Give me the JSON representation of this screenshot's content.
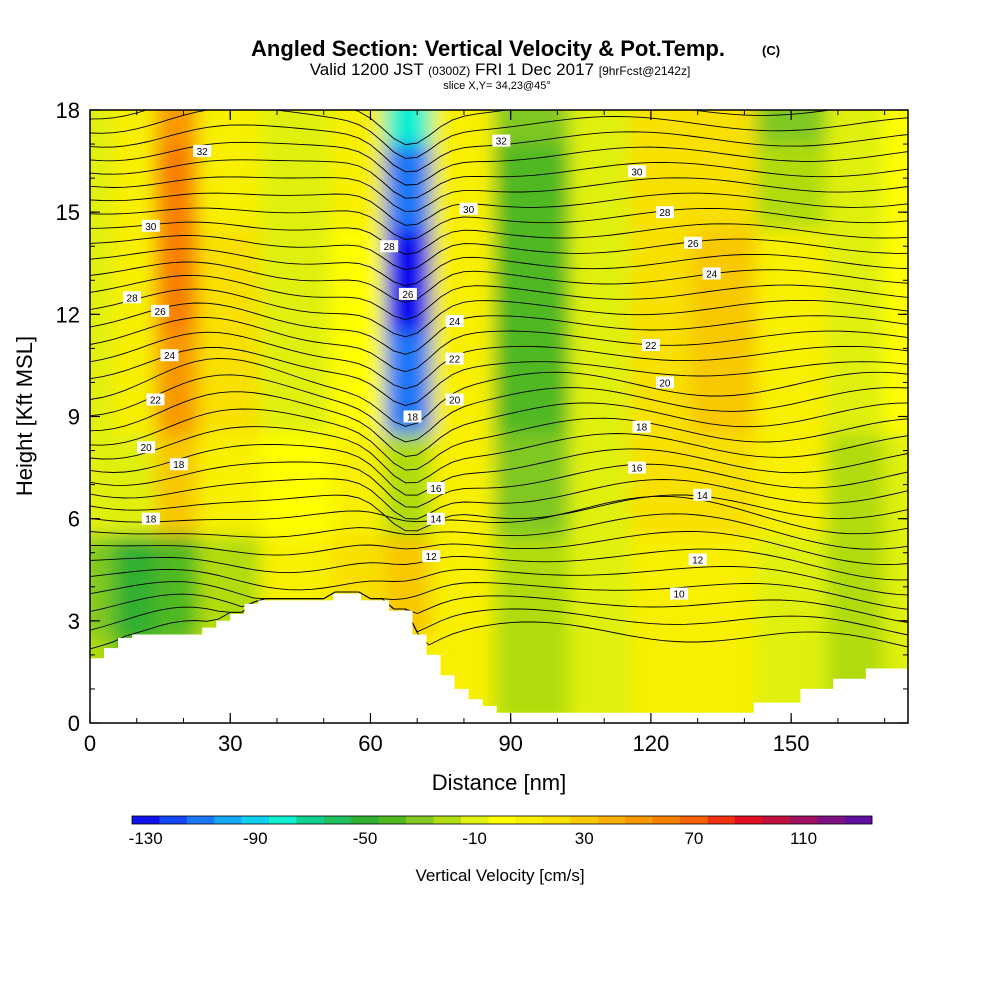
{
  "header": {
    "title": "Angled Section: Vertical Velocity & Pot.Temp.",
    "title_tag": "(C)",
    "valid_prefix": "Valid 1200 JST",
    "valid_utc": "(0300Z)",
    "valid_date": "FRI 1 Dec 2017",
    "forecast": "[9hrFcst@2142z]",
    "slice": "slice X,Y= 34,23@45°"
  },
  "chart_data": {
    "type": "heatmap",
    "xlabel": "Distance [nm]",
    "ylabel": "Height [Kft MSL]",
    "xlim": [
      0,
      175
    ],
    "ylim": [
      0,
      18
    ],
    "x_ticks": [
      0,
      30,
      60,
      90,
      120,
      150
    ],
    "y_ticks": [
      0,
      3,
      6,
      9,
      12,
      15,
      18
    ],
    "x_tick_labels": [
      "0",
      "30",
      "60",
      "90",
      "120",
      "150"
    ],
    "y_tick_labels": [
      "0",
      "3",
      "6",
      "9",
      "12",
      "15",
      "18"
    ],
    "terrain": {
      "x": [
        0,
        3,
        3,
        6,
        6,
        9,
        9,
        24,
        24,
        27,
        27,
        30,
        30,
        33,
        33,
        36,
        36,
        52,
        52,
        58,
        58,
        64,
        64,
        69,
        69,
        72,
        72,
        75,
        75,
        78,
        78,
        81,
        81,
        84,
        84,
        87,
        87,
        90,
        90,
        120,
        120,
        142,
        142,
        152,
        152,
        159,
        159,
        166,
        166,
        175
      ],
      "y": [
        1.9,
        1.9,
        2.2,
        2.2,
        2.5,
        2.5,
        2.6,
        2.6,
        2.8,
        2.8,
        3.0,
        3.0,
        3.2,
        3.2,
        3.5,
        3.5,
        3.6,
        3.6,
        3.8,
        3.8,
        3.6,
        3.6,
        3.3,
        3.3,
        2.6,
        2.6,
        2.0,
        2.0,
        1.4,
        1.4,
        1.0,
        1.0,
        0.7,
        0.7,
        0.5,
        0.5,
        0.3,
        0.3,
        0.3,
        0.3,
        0.3,
        0.3,
        0.6,
        0.6,
        1.0,
        1.0,
        1.3,
        1.3,
        1.6,
        1.6
      ]
    },
    "vertical_velocity": {
      "units": "cm/s",
      "x_centers": [
        0,
        10,
        18,
        28,
        45,
        58,
        68,
        78,
        95,
        110,
        122,
        135,
        150,
        165,
        175
      ],
      "levels_kft": [
        1,
        4,
        7,
        10,
        13,
        16,
        18
      ],
      "values_cm_s": [
        [
          -20,
          -40,
          -30,
          -10,
          -10,
          10,
          10,
          10,
          -20,
          -10,
          10,
          10,
          -10,
          -20,
          -10
        ],
        [
          -30,
          -50,
          -40,
          -20,
          10,
          20,
          30,
          10,
          -20,
          -10,
          10,
          10,
          -10,
          -20,
          -10
        ],
        [
          -10,
          -10,
          30,
          10,
          0,
          10,
          -20,
          10,
          -30,
          -10,
          20,
          20,
          10,
          -20,
          -10
        ],
        [
          -10,
          10,
          50,
          20,
          -10,
          0,
          -110,
          10,
          -40,
          -10,
          20,
          30,
          10,
          -10,
          0
        ],
        [
          -10,
          10,
          60,
          20,
          -10,
          0,
          -130,
          10,
          -40,
          -10,
          20,
          30,
          10,
          -10,
          0
        ],
        [
          -10,
          10,
          60,
          10,
          -10,
          10,
          -110,
          10,
          -40,
          -10,
          20,
          20,
          -20,
          -10,
          0
        ],
        [
          -10,
          10,
          50,
          10,
          -10,
          10,
          -80,
          10,
          -30,
          -10,
          20,
          20,
          -30,
          -10,
          0
        ]
      ]
    },
    "potential_temperature": {
      "units": "C",
      "contour_labels": [
        {
          "value": "32",
          "x": 24,
          "y": 16.8
        },
        {
          "value": "30",
          "x": 13,
          "y": 14.6
        },
        {
          "value": "28",
          "x": 9,
          "y": 12.5
        },
        {
          "value": "26",
          "x": 15,
          "y": 12.1
        },
        {
          "value": "24",
          "x": 17,
          "y": 10.8
        },
        {
          "value": "22",
          "x": 14,
          "y": 9.5
        },
        {
          "value": "20",
          "x": 12,
          "y": 8.1
        },
        {
          "value": "18",
          "x": 19,
          "y": 7.6
        },
        {
          "value": "18",
          "x": 13,
          "y": 6.0
        },
        {
          "value": "28",
          "x": 64,
          "y": 14.0
        },
        {
          "value": "26",
          "x": 68,
          "y": 12.6
        },
        {
          "value": "18",
          "x": 69,
          "y": 9.0
        },
        {
          "value": "32",
          "x": 88,
          "y": 17.1
        },
        {
          "value": "30",
          "x": 81,
          "y": 15.1
        },
        {
          "value": "24",
          "x": 78,
          "y": 11.8
        },
        {
          "value": "22",
          "x": 78,
          "y": 10.7
        },
        {
          "value": "20",
          "x": 78,
          "y": 9.5
        },
        {
          "value": "16",
          "x": 74,
          "y": 6.9
        },
        {
          "value": "14",
          "x": 74,
          "y": 6.0
        },
        {
          "value": "12",
          "x": 73,
          "y": 4.9
        },
        {
          "value": "30",
          "x": 117,
          "y": 16.2
        },
        {
          "value": "28",
          "x": 123,
          "y": 15.0
        },
        {
          "value": "26",
          "x": 129,
          "y": 14.1
        },
        {
          "value": "24",
          "x": 133,
          "y": 13.2
        },
        {
          "value": "22",
          "x": 120,
          "y": 11.1
        },
        {
          "value": "20",
          "x": 123,
          "y": 10.0
        },
        {
          "value": "18",
          "x": 118,
          "y": 8.7
        },
        {
          "value": "16",
          "x": 117,
          "y": 7.5
        },
        {
          "value": "14",
          "x": 131,
          "y": 6.7
        },
        {
          "value": "12",
          "x": 130,
          "y": 4.8
        },
        {
          "value": "10",
          "x": 126,
          "y": 3.8
        }
      ]
    }
  },
  "colorbar": {
    "label": "Vertical Velocity [cm/s]",
    "tick_labels": [
      "-130",
      "-90",
      "-50",
      "-10",
      "30",
      "70",
      "110"
    ],
    "colors": [
      "#1010f0",
      "#1446f6",
      "#1a78f8",
      "#14a8f8",
      "#10d0f0",
      "#10f0d0",
      "#10d090",
      "#20c060",
      "#30b030",
      "#50b820",
      "#80c820",
      "#b0dc10",
      "#e0f010",
      "#ffff00",
      "#f8f000",
      "#f8e000",
      "#f8c800",
      "#f8b000",
      "#f89800",
      "#f88000",
      "#f86000",
      "#f03010",
      "#e01020",
      "#c01040",
      "#a01060",
      "#801080",
      "#6010a0"
    ]
  }
}
